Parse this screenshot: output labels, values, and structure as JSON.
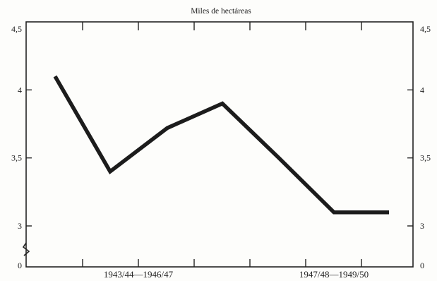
{
  "chart_data": {
    "type": "line",
    "title": "Miles de hectáreas",
    "xlabel": "",
    "ylabel": "",
    "x": [
      0,
      1,
      2,
      3,
      4,
      5,
      6
    ],
    "ylim": [
      0,
      4.5
    ],
    "axis_break": true,
    "y_ticks": [
      {
        "value": 0,
        "label": "0"
      },
      {
        "value": 3,
        "label": "3"
      },
      {
        "value": 3.5,
        "label": "3,5"
      },
      {
        "value": 4,
        "label": "4"
      },
      {
        "value": 4.5,
        "label": "4,5"
      }
    ],
    "x_group_labels": [
      {
        "label": "1943/44—1946/47",
        "from": 1,
        "to": 3
      },
      {
        "label": "1947/48—1949/50",
        "from": 5,
        "to": 6
      }
    ],
    "series": [
      {
        "values": [
          4.1,
          3.4,
          3.72,
          3.9,
          3.5,
          3.1,
          3.1
        ]
      }
    ],
    "grid": false,
    "legend": "none"
  },
  "colors": {
    "line": "#1c1c1c",
    "axis": "#222222",
    "background": "#fdfdfb"
  }
}
